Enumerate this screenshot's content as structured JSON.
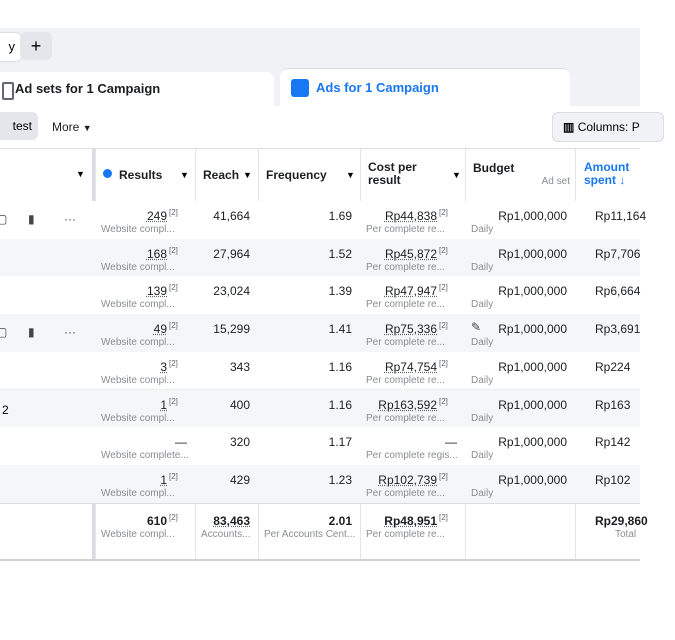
{
  "tabs": {
    "left_partial": "y",
    "add": "+",
    "ad_sets": "Ad sets for 1 Campaign",
    "ads": "Ads for 1 Campaign"
  },
  "toolbar": {
    "test": "test",
    "more": "More",
    "columns": "Columns: P"
  },
  "table": {
    "headers": {
      "results": "Results",
      "reach": "Reach",
      "frequency": "Frequency",
      "cost": "Cost per result",
      "budget": "Budget",
      "budget_sub": "Ad set",
      "amount": "Amount spent ↓"
    },
    "rows": [
      {
        "icons": true,
        "results": "249",
        "results_note": "[2]",
        "results_sub": "Website compl...",
        "reach": "41,664",
        "frequency": "1.69",
        "cost": "Rp44,838",
        "cost_note": "[2]",
        "cost_sub": "Per complete re...",
        "budget": "Rp1,000,000",
        "budget_sub": "Daily",
        "amount": "Rp11,164"
      },
      {
        "results": "168",
        "results_note": "[2]",
        "results_sub": "Website compl...",
        "reach": "27,964",
        "frequency": "1.52",
        "cost": "Rp45,872",
        "cost_note": "[2]",
        "cost_sub": "Per complete re...",
        "budget": "Rp1,000,000",
        "budget_sub": "Daily",
        "amount": "Rp7,706"
      },
      {
        "results": "139",
        "results_note": "[2]",
        "results_sub": "Website compl...",
        "reach": "23,024",
        "frequency": "1.39",
        "cost": "Rp47,947",
        "cost_note": "[2]",
        "cost_sub": "Per complete re...",
        "budget": "Rp1,000,000",
        "budget_sub": "Daily",
        "amount": "Rp6,664"
      },
      {
        "icons": true,
        "edit": true,
        "results": "49",
        "results_note": "[2]",
        "results_sub": "Website compl...",
        "reach": "15,299",
        "frequency": "1.41",
        "cost": "Rp75,336",
        "cost_note": "[2]",
        "cost_sub": "Per complete re...",
        "budget": "Rp1,000,000",
        "budget_sub": "Daily",
        "amount": "Rp3,691"
      },
      {
        "results": "3",
        "results_note": "[2]",
        "results_sub": "Website compl...",
        "reach": "343",
        "frequency": "1.16",
        "cost": "Rp74,754",
        "cost_note": "[2]",
        "cost_sub": "Per complete re...",
        "budget": "Rp1,000,000",
        "budget_sub": "Daily",
        "amount": "Rp224"
      },
      {
        "label": "2",
        "results": "1",
        "results_note": "[2]",
        "results_sub": "Website compl...",
        "reach": "400",
        "frequency": "1.16",
        "cost": "Rp163,592",
        "cost_note": "[2]",
        "cost_sub": "Per complete re...",
        "budget": "Rp1,000,000",
        "budget_sub": "Daily",
        "amount": "Rp163"
      },
      {
        "results": "—",
        "results_sub": "Website complete...",
        "reach": "320",
        "frequency": "1.17",
        "cost": "—",
        "cost_sub": "Per complete regis...",
        "budget": "Rp1,000,000",
        "budget_sub": "Daily",
        "amount": "Rp142"
      },
      {
        "results": "1",
        "results_note": "[2]",
        "results_sub": "Website compl...",
        "reach": "429",
        "frequency": "1.23",
        "cost": "Rp102,739",
        "cost_note": "[2]",
        "cost_sub": "Per complete re...",
        "budget": "Rp1,000,000",
        "budget_sub": "Daily",
        "amount": "Rp102"
      }
    ],
    "totals": {
      "results": "610",
      "results_note": "[2]",
      "results_sub": "Website compl...",
      "reach": "83,463",
      "reach_sub": "Accounts...",
      "frequency": "2.01",
      "frequency_sub": "Per Accounts Cent...",
      "cost": "Rp48,951",
      "cost_note": "[2]",
      "cost_sub": "Per complete re...",
      "amount": "Rp29,860",
      "amount_sub": "Total"
    }
  }
}
